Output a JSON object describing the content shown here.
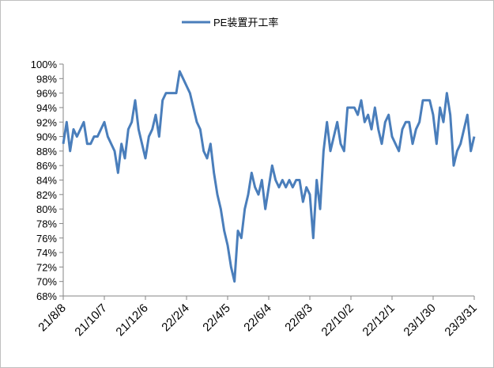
{
  "chart_data": {
    "type": "line",
    "categories": [
      "21/8/8",
      null,
      null,
      null,
      null,
      null,
      null,
      null,
      null,
      null,
      null,
      null,
      "21/10/7",
      null,
      null,
      null,
      null,
      null,
      null,
      null,
      null,
      null,
      null,
      null,
      "21/12/6",
      null,
      null,
      null,
      null,
      null,
      null,
      null,
      null,
      null,
      null,
      null,
      "22/2/4",
      null,
      null,
      null,
      null,
      null,
      null,
      null,
      null,
      null,
      null,
      null,
      "22/4/5",
      null,
      null,
      null,
      null,
      null,
      null,
      null,
      null,
      null,
      null,
      null,
      "22/6/4",
      null,
      null,
      null,
      null,
      null,
      null,
      null,
      null,
      null,
      null,
      null,
      "22/8/3",
      null,
      null,
      null,
      null,
      null,
      null,
      null,
      null,
      null,
      null,
      null,
      "22/10/2",
      null,
      null,
      null,
      null,
      null,
      null,
      null,
      null,
      null,
      null,
      null,
      "22/12/1",
      null,
      null,
      null,
      null,
      null,
      null,
      null,
      null,
      null,
      null,
      null,
      "23/1/30",
      null,
      null,
      null,
      null,
      null,
      null,
      null,
      null,
      null,
      null,
      null,
      "23/3/31"
    ],
    "series": [
      {
        "name": "PE装置开工率",
        "color": "#4a7ebb",
        "values": [
          89,
          92,
          88,
          91,
          90,
          91,
          92,
          89,
          89,
          90,
          90,
          91,
          92,
          90,
          89,
          88,
          85,
          89,
          87,
          91,
          92,
          95,
          91,
          89,
          87,
          90,
          91,
          93,
          90,
          95,
          96,
          96,
          96,
          96,
          99,
          98,
          97,
          96,
          94,
          92,
          91,
          88,
          87,
          89,
          85,
          82,
          80,
          77,
          75,
          72,
          70,
          77,
          76,
          80,
          82,
          85,
          83,
          82,
          84,
          80,
          83,
          86,
          84,
          83,
          84,
          83,
          84,
          83,
          84,
          84,
          81,
          83,
          82,
          76,
          84,
          80,
          88,
          92,
          88,
          90,
          92,
          89,
          88,
          94,
          94,
          94,
          93,
          95,
          92,
          93,
          91,
          94,
          91,
          89,
          92,
          93,
          90,
          89,
          88,
          91,
          92,
          92,
          89,
          91,
          92,
          95,
          95,
          95,
          93,
          89,
          94,
          92,
          96,
          93,
          86,
          88,
          89,
          91,
          93,
          88,
          90
        ]
      }
    ],
    "ylim": [
      68,
      100
    ],
    "yticks": [
      {
        "value": 68,
        "label": "68%"
      },
      {
        "value": 70,
        "label": "70%"
      },
      {
        "value": 72,
        "label": "72%"
      },
      {
        "value": 74,
        "label": "74%"
      },
      {
        "value": 76,
        "label": "76%"
      },
      {
        "value": 78,
        "label": "78%"
      },
      {
        "value": 80,
        "label": "80%"
      },
      {
        "value": 82,
        "label": "82%"
      },
      {
        "value": 84,
        "label": "84%"
      },
      {
        "value": 86,
        "label": "86%"
      },
      {
        "value": 88,
        "label": "88%"
      },
      {
        "value": 90,
        "label": "90%"
      },
      {
        "value": 92,
        "label": "92%"
      },
      {
        "value": 94,
        "label": "94%"
      },
      {
        "value": 96,
        "label": "96%"
      },
      {
        "value": 98,
        "label": "98%"
      },
      {
        "value": 100,
        "label": "100%"
      }
    ],
    "grid": false,
    "legend": "top"
  }
}
